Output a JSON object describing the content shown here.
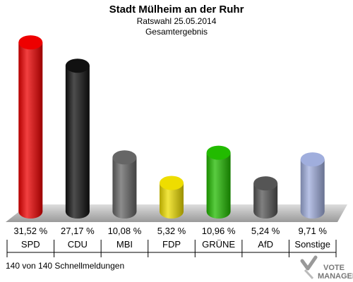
{
  "header": {
    "title": "Stadt Mülheim an der Ruhr",
    "subtitle": "Ratswahl 25.05.2014",
    "subtitle2": "Gesamtergebnis"
  },
  "footer": {
    "note": "140 von 140 Schnellmeldungen",
    "logo_line1": "VOTE",
    "logo_line2": "MANAGER"
  },
  "chart_data": {
    "type": "bar",
    "title": "Stadt Mülheim an der Ruhr",
    "categories": [
      "SPD",
      "CDU",
      "MBI",
      "FDP",
      "GRÜNE",
      "AfD",
      "Sonstige"
    ],
    "values": [
      31.52,
      27.17,
      10.08,
      5.32,
      10.96,
      5.24,
      9.71
    ],
    "value_labels": [
      "31,52 %",
      "27,17 %",
      "10,08 %",
      "5,32 %",
      "10,96 %",
      "5,24 %",
      "9,71 %"
    ],
    "unit": "%",
    "colors": [
      "#ee0000",
      "#111111",
      "#666666",
      "#eedd00",
      "#22bb00",
      "#555555",
      "#a0aedd"
    ],
    "xlabel": "",
    "ylabel": "",
    "grid": false
  }
}
